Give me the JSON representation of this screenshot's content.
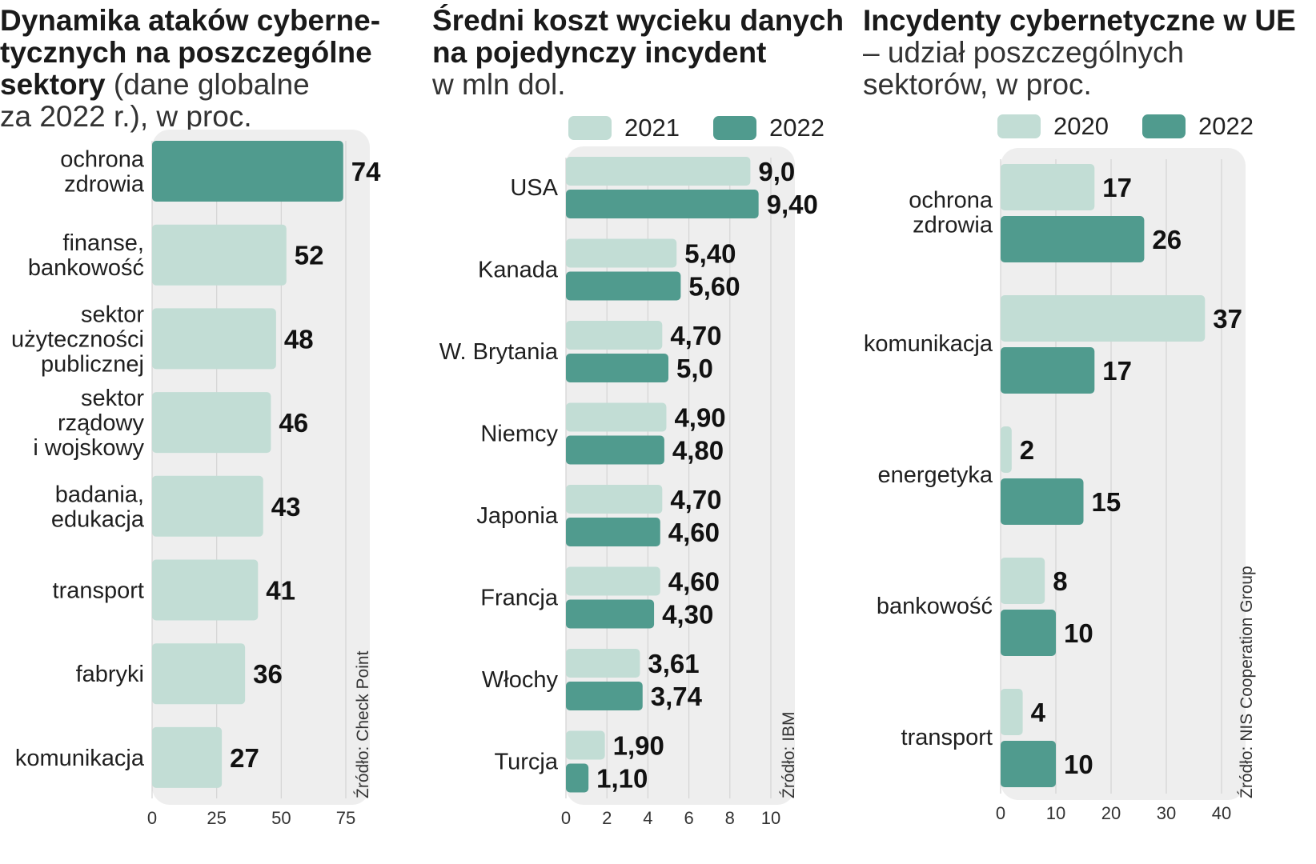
{
  "colors": {
    "light": "#c2ddd5",
    "dark": "#509b8e",
    "panel_bg": "#eeeeee",
    "grid": "#d4d4d4"
  },
  "chart_data": [
    {
      "type": "bar",
      "orientation": "horizontal",
      "title": "Dynamika ataków cyberne-tycznych na poszczególne sektory",
      "title_lines": [
        "Dynamika ataków cyberne-",
        "tycznych na poszczególne",
        "sektory"
      ],
      "subtitle": "(dane globalne za 2022 r.), w proc.",
      "subtitle_lines": [
        " (dane globalne",
        "za 2022 r.), w proc."
      ],
      "categories": [
        [
          "ochrona",
          "zdrowia"
        ],
        [
          "finanse,",
          "bankowość"
        ],
        [
          "sektor",
          "użyteczności",
          "publicznej"
        ],
        [
          "sektor",
          "rządowy",
          "i wojskowy"
        ],
        [
          "badania,",
          "edukacja"
        ],
        [
          "transport"
        ],
        [
          "fabryki"
        ],
        [
          "komunikacja"
        ]
      ],
      "values": [
        74,
        52,
        48,
        46,
        43,
        41,
        36,
        27
      ],
      "value_labels": [
        "74",
        "52",
        "48",
        "46",
        "43",
        "41",
        "36",
        "27"
      ],
      "highlight_index": 0,
      "xlim": [
        0,
        75
      ],
      "xticks": [
        "0",
        "25",
        "50",
        "75"
      ],
      "source": "Źródło: Check Point"
    },
    {
      "type": "bar",
      "orientation": "horizontal",
      "title": "Średni koszt wycieku danych na pojedynczy incydent",
      "title_lines": [
        "Średni koszt wycieku danych",
        "na pojedynczy incydent"
      ],
      "subtitle": "w mln dol.",
      "categories": [
        "USA",
        "Kanada",
        "W. Brytania",
        "Niemcy",
        "Japonia",
        "Francja",
        "Włochy",
        "Turcja"
      ],
      "series": [
        {
          "name": "2021",
          "values": [
            9.0,
            5.4,
            4.7,
            4.9,
            4.7,
            4.6,
            3.61,
            1.9
          ],
          "labels": [
            "9,0",
            "5,40",
            "4,70",
            "4,90",
            "4,70",
            "4,60",
            "3,61",
            "1,90"
          ]
        },
        {
          "name": "2022",
          "values": [
            9.4,
            5.6,
            5.0,
            4.8,
            4.6,
            4.3,
            3.74,
            1.1
          ],
          "labels": [
            "9,40",
            "5,60",
            "5,0",
            "4,80",
            "4,60",
            "4,30",
            "3,74",
            "1,10"
          ]
        }
      ],
      "xlim": [
        0,
        10
      ],
      "xticks": [
        "0",
        "2",
        "4",
        "6",
        "8",
        "10"
      ],
      "legend": "top",
      "source": "Źródło: IBM"
    },
    {
      "type": "bar",
      "orientation": "horizontal",
      "title": "Incydenty cybernetyczne w UE",
      "subtitle": "– udział poszczególnych sektorów, w proc.",
      "subtitle_lines": [
        "– udział poszczególnych",
        "sektorów, w proc."
      ],
      "categories": [
        [
          "ochrona",
          "zdrowia"
        ],
        [
          "komunikacja"
        ],
        [
          "energetyka"
        ],
        [
          "bankowość"
        ],
        [
          "transport"
        ]
      ],
      "series": [
        {
          "name": "2020",
          "values": [
            17,
            37,
            2,
            8,
            4
          ],
          "labels": [
            "17",
            "37",
            "2",
            "8",
            "4"
          ]
        },
        {
          "name": "2022",
          "values": [
            26,
            17,
            15,
            10,
            10
          ],
          "labels": [
            "26",
            "17",
            "15",
            "10",
            "10"
          ]
        }
      ],
      "xlim": [
        0,
        40
      ],
      "xticks": [
        "0",
        "10",
        "20",
        "30",
        "40"
      ],
      "legend": "top",
      "source": "Źródło: NIS Cooperation Group"
    }
  ]
}
